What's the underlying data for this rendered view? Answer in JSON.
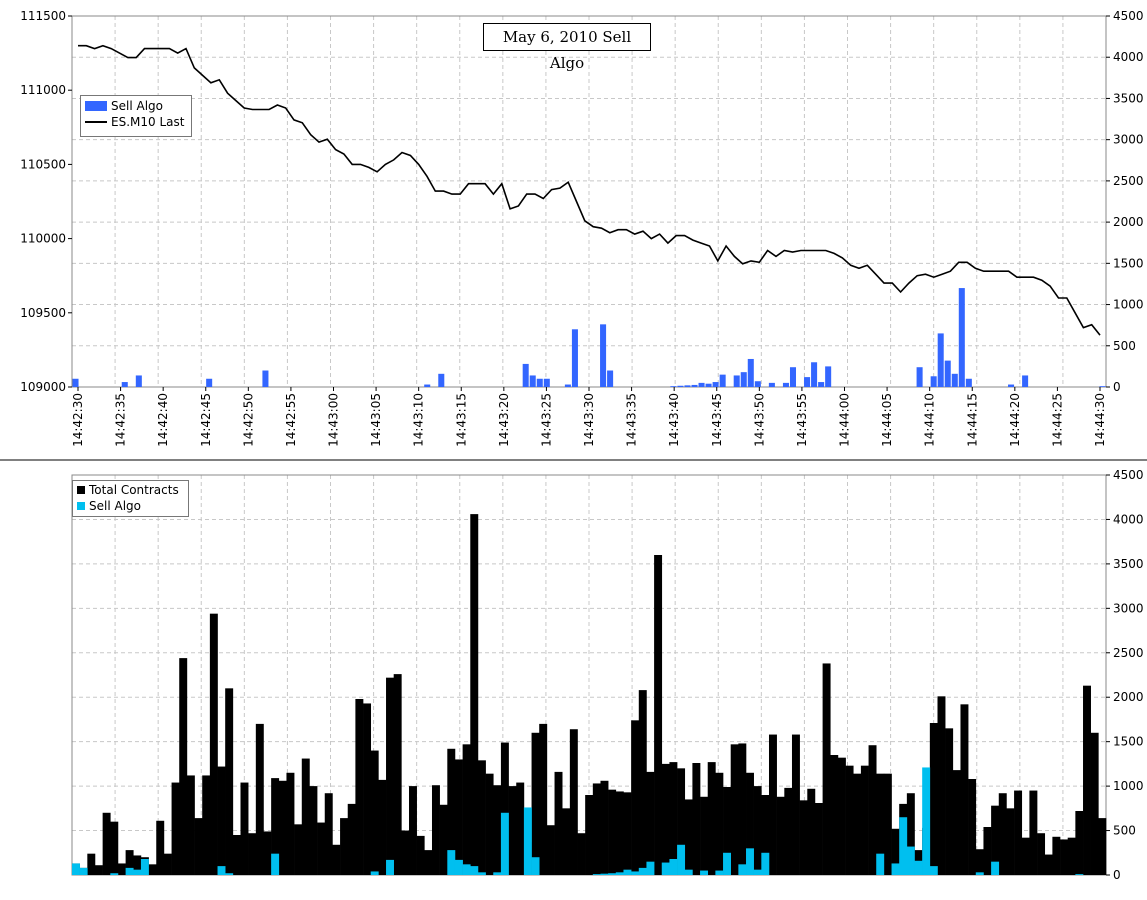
{
  "colors": {
    "sell_algo_top": "#3366ff",
    "sell_algo_bottom": "#00bfef",
    "total": "#000000",
    "price_line": "#000000",
    "grid": "#c8c8c8"
  },
  "chart_data": [
    {
      "type": "bar",
      "title": "May 6, 2010 Sell Algo",
      "y_left_ticks": [
        "111500",
        "111000",
        "110500",
        "110000",
        "109500",
        "109000"
      ],
      "y_right_ticks": [
        "4500",
        "4000",
        "3500",
        "3000",
        "2500",
        "2000",
        "1500",
        "1000",
        "500",
        "0"
      ],
      "x_ticks": [
        "14:42:30",
        "14:42:35",
        "14:42:40",
        "14:42:45",
        "14:42:50",
        "14:42:55",
        "14:43:00",
        "14:43:05",
        "14:43:10",
        "14:43:15",
        "14:43:20",
        "14:43:25",
        "14:43:30",
        "14:43:35",
        "14:43:40",
        "14:43:45",
        "14:43:50",
        "14:43:55",
        "14:44:00",
        "14:44:05",
        "14:44:10",
        "14:44:15",
        "14:44:20",
        "14:44:25",
        "14:44:30"
      ],
      "ylim_left": [
        109000,
        111500
      ],
      "ylim_right": [
        0,
        4500
      ],
      "legend": [
        "Sell Algo",
        "ES.M10 Last"
      ],
      "legend_position": "top-left",
      "series": [
        {
          "name": "Sell Algo",
          "axis": "right",
          "kind": "bar",
          "values": [
            100,
            0,
            0,
            0,
            0,
            0,
            0,
            60,
            0,
            140,
            0,
            0,
            0,
            0,
            0,
            0,
            0,
            0,
            0,
            100,
            0,
            0,
            0,
            0,
            0,
            0,
            0,
            200,
            0,
            0,
            0,
            0,
            0,
            0,
            0,
            0,
            0,
            0,
            0,
            0,
            0,
            0,
            0,
            0,
            0,
            0,
            0,
            0,
            0,
            0,
            30,
            0,
            160,
            0,
            0,
            0,
            0,
            0,
            0,
            0,
            0,
            0,
            0,
            0,
            280,
            140,
            100,
            100,
            0,
            0,
            30,
            700,
            0,
            0,
            0,
            760,
            200,
            0,
            0,
            0,
            0,
            0,
            0,
            0,
            0,
            10,
            15,
            20,
            25,
            50,
            40,
            60,
            150,
            0,
            140,
            180,
            340,
            70,
            0,
            50,
            0,
            50,
            240,
            0,
            120,
            300,
            60,
            250,
            0,
            0,
            0,
            0,
            0,
            0,
            0,
            0,
            0,
            0,
            0,
            0,
            240,
            0,
            130,
            650,
            320,
            160,
            1200,
            100,
            0,
            0,
            0,
            0,
            0,
            30,
            0,
            140,
            0,
            0,
            0,
            0,
            0,
            0,
            0,
            0,
            0,
            0,
            10
          ]
        },
        {
          "name": "ES.M10 Last",
          "axis": "left",
          "kind": "line",
          "values": [
            111300,
            111300,
            111280,
            111300,
            111280,
            111250,
            111220,
            111220,
            111280,
            111280,
            111280,
            111280,
            111250,
            111280,
            111150,
            111100,
            111050,
            111070,
            110980,
            110930,
            110880,
            110870,
            110870,
            110870,
            110900,
            110880,
            110800,
            110780,
            110700,
            110650,
            110670,
            110600,
            110570,
            110500,
            110500,
            110480,
            110450,
            110500,
            110530,
            110580,
            110560,
            110500,
            110420,
            110320,
            110320,
            110300,
            110300,
            110370,
            110370,
            110370,
            110300,
            110370,
            110200,
            110220,
            110300,
            110300,
            110270,
            110330,
            110340,
            110380,
            110250,
            110120,
            110080,
            110070,
            110040,
            110060,
            110060,
            110030,
            110050,
            110000,
            110030,
            109970,
            110020,
            110020,
            109990,
            109970,
            109950,
            109850,
            109950,
            109880,
            109830,
            109850,
            109840,
            109920,
            109880,
            109920,
            109910,
            109920,
            109920,
            109920,
            109920,
            109900,
            109870,
            109820,
            109800,
            109820,
            109760,
            109700,
            109700,
            109640,
            109700,
            109750,
            109760,
            109740,
            109760,
            109780,
            109840,
            109840,
            109800,
            109780,
            109780,
            109780,
            109780,
            109740,
            109740,
            109740,
            109720,
            109680,
            109600,
            109600,
            109500,
            109400,
            109420,
            109350
          ]
        }
      ]
    },
    {
      "type": "bar",
      "y_right_ticks": [
        "4500",
        "4000",
        "3500",
        "3000",
        "2500",
        "2000",
        "1500",
        "1000",
        "500",
        "0"
      ],
      "ylim": [
        0,
        4500
      ],
      "legend": [
        "Total Contracts",
        "Sell Algo"
      ],
      "legend_position": "top-left",
      "series": [
        {
          "name": "Total Contracts",
          "values": [
            130,
            80,
            240,
            110,
            700,
            600,
            130,
            280,
            220,
            200,
            120,
            610,
            240,
            1040,
            2440,
            1120,
            640,
            1120,
            2940,
            1220,
            2100,
            450,
            1040,
            470,
            1700,
            490,
            1090,
            1060,
            1150,
            570,
            1310,
            1000,
            590,
            920,
            340,
            640,
            800,
            1980,
            1930,
            1400,
            1070,
            2220,
            2260,
            500,
            1000,
            440,
            280,
            1010,
            790,
            1420,
            1300,
            1470,
            4060,
            1290,
            1140,
            1010,
            1490,
            1000,
            1040,
            370,
            1600,
            1700,
            560,
            1160,
            750,
            1640,
            470,
            900,
            1030,
            1060,
            960,
            940,
            930,
            1740,
            2080,
            1160,
            3600,
            1250,
            1270,
            1200,
            850,
            1260,
            880,
            1270,
            1150,
            990,
            1470,
            1480,
            1150,
            1000,
            900,
            1580,
            880,
            980,
            1580,
            840,
            970,
            810,
            2380,
            1350,
            1320,
            1230,
            1140,
            1230,
            1460,
            1140,
            1140,
            520,
            800,
            920,
            280,
            530,
            1710,
            2010,
            1650,
            1180,
            1920,
            1080,
            290,
            540,
            780,
            920,
            750,
            950,
            420,
            950,
            470,
            230,
            430,
            400,
            420,
            720,
            2130,
            1600,
            640
          ]
        },
        {
          "name": "Sell Algo",
          "values": [
            130,
            80,
            0,
            0,
            0,
            20,
            0,
            80,
            60,
            180,
            0,
            0,
            0,
            0,
            0,
            0,
            0,
            0,
            0,
            100,
            20,
            0,
            0,
            0,
            0,
            0,
            240,
            0,
            0,
            0,
            0,
            0,
            0,
            0,
            0,
            0,
            0,
            0,
            0,
            40,
            0,
            170,
            0,
            0,
            0,
            0,
            0,
            0,
            0,
            280,
            170,
            120,
            100,
            30,
            0,
            30,
            700,
            0,
            0,
            760,
            200,
            0,
            0,
            0,
            0,
            0,
            0,
            0,
            10,
            15,
            20,
            30,
            60,
            40,
            80,
            150,
            0,
            140,
            180,
            340,
            60,
            0,
            50,
            0,
            50,
            250,
            0,
            120,
            300,
            60,
            250,
            0,
            0,
            0,
            0,
            0,
            0,
            0,
            0,
            0,
            0,
            0,
            0,
            0,
            0,
            240,
            0,
            130,
            650,
            320,
            160,
            1210,
            100,
            0,
            0,
            0,
            0,
            0,
            30,
            0,
            150,
            0,
            0,
            0,
            0,
            0,
            0,
            0,
            0,
            0,
            0,
            10
          ]
        }
      ]
    }
  ]
}
